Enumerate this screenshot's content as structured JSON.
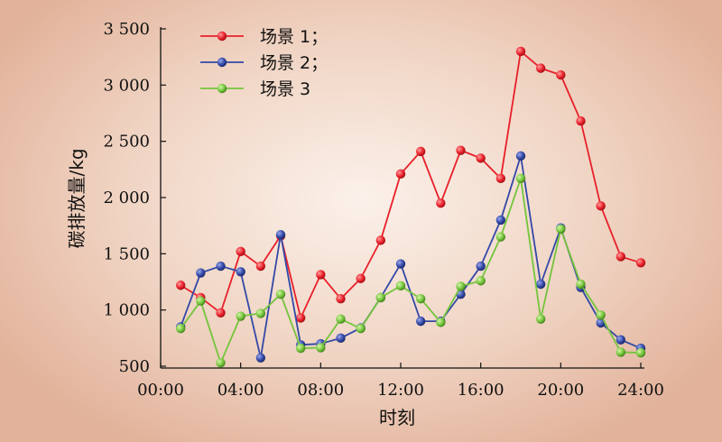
{
  "chart_data": {
    "type": "line",
    "xlabel": "时刻",
    "ylabel": "碳排放量/kg",
    "xlim": [
      0,
      24
    ],
    "ylim": [
      450,
      3550
    ],
    "x_ticks": [
      {
        "value": 0,
        "label": "00:00"
      },
      {
        "value": 4,
        "label": "04:00"
      },
      {
        "value": 8,
        "label": "08:00"
      },
      {
        "value": 12,
        "label": "12:00"
      },
      {
        "value": 16,
        "label": "16:00"
      },
      {
        "value": 20,
        "label": "20:00"
      },
      {
        "value": 24,
        "label": "24:00"
      }
    ],
    "y_ticks": [
      {
        "value": 500,
        "label": "500"
      },
      {
        "value": 1000,
        "label": "1 000"
      },
      {
        "value": 1500,
        "label": "1 500"
      },
      {
        "value": 2000,
        "label": "2 000"
      },
      {
        "value": 2500,
        "label": "2 500"
      },
      {
        "value": 3000,
        "label": "3 000"
      },
      {
        "value": 3500,
        "label": "3 500"
      }
    ],
    "grid": false,
    "legend_position": "top-left",
    "x": [
      1,
      2,
      3,
      4,
      5,
      6,
      7,
      8,
      9,
      10,
      11,
      12,
      13,
      14,
      15,
      16,
      17,
      18,
      19,
      20,
      21,
      22,
      23,
      24
    ],
    "series": [
      {
        "name": "场景 1；",
        "color": "#e8202a",
        "values": [
          1220,
          1110,
          975,
          1520,
          1390,
          1660,
          930,
          1315,
          1100,
          1280,
          1620,
          2210,
          2410,
          1950,
          2420,
          2350,
          2170,
          3300,
          3150,
          3090,
          2680,
          1925,
          1475,
          1420
        ]
      },
      {
        "name": "场景 2；",
        "color": "#3348a6",
        "values": [
          850,
          1330,
          1390,
          1340,
          575,
          1670,
          690,
          700,
          750,
          840,
          1110,
          1410,
          900,
          900,
          1140,
          1390,
          1800,
          2370,
          1230,
          1730,
          1200,
          885,
          735,
          660
        ]
      },
      {
        "name": "场景 3",
        "color": "#74c43c",
        "values": [
          835,
          1080,
          530,
          945,
          970,
          1140,
          660,
          665,
          920,
          835,
          1110,
          1215,
          1100,
          890,
          1210,
          1260,
          1650,
          2170,
          920,
          1720,
          1230,
          955,
          625,
          620
        ]
      }
    ]
  }
}
